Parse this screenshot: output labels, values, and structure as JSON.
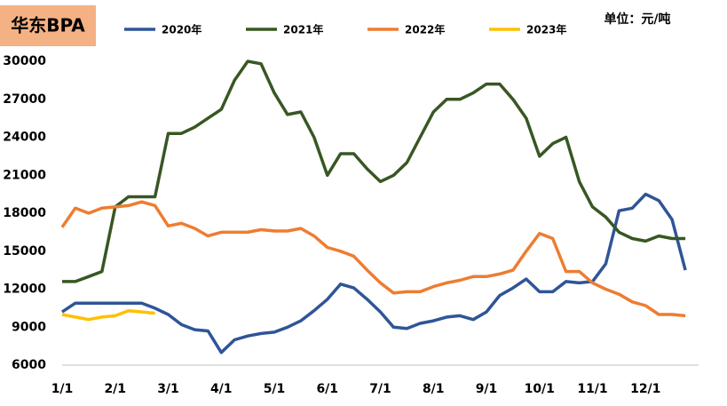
{
  "chart_data": {
    "type": "line",
    "title": "华东BPA",
    "unit_label": "单位：元/吨",
    "categories": [
      "1/1",
      null,
      null,
      null,
      "2/1",
      null,
      null,
      null,
      "3/1",
      null,
      null,
      null,
      "4/1",
      null,
      null,
      null,
      "5/1",
      null,
      null,
      null,
      "6/1",
      null,
      null,
      null,
      "7/1",
      null,
      null,
      null,
      "8/1",
      null,
      null,
      null,
      "9/1",
      null,
      null,
      null,
      "10/1",
      null,
      null,
      null,
      "11/1",
      null,
      null,
      null,
      "12/1",
      null,
      null,
      null
    ],
    "series": [
      {
        "name": "2020年",
        "color": "#2f5597",
        "values": [
          10200,
          10900,
          10900,
          10900,
          10900,
          10900,
          10900,
          10500,
          10000,
          9200,
          8800,
          8700,
          7000,
          8000,
          8300,
          8500,
          8600,
          9000,
          9500,
          10300,
          11200,
          12400,
          12100,
          11200,
          10200,
          9000,
          8900,
          9300,
          9500,
          9800,
          9900,
          9600,
          10200,
          11500,
          12100,
          12800,
          11800,
          11800,
          12600,
          12500,
          12600,
          14000,
          18200,
          18400,
          19500,
          19000,
          17500,
          13500
        ]
      },
      {
        "name": "2021年",
        "color": "#385723",
        "values": [
          12600,
          12600,
          13000,
          13400,
          18500,
          19300,
          19300,
          19300,
          24300,
          24300,
          24800,
          25500,
          26200,
          28500,
          30000,
          29800,
          27500,
          25800,
          26000,
          24000,
          21000,
          22700,
          22700,
          21500,
          20500,
          21000,
          22000,
          24000,
          26000,
          27000,
          27000,
          27500,
          28200,
          28200,
          27000,
          25500,
          22500,
          23500,
          24000,
          20500,
          18500,
          17700,
          16500,
          16000,
          15800,
          16200,
          16000,
          16000
        ]
      },
      {
        "name": "2022年",
        "color": "#ed7d31",
        "values": [
          16900,
          18400,
          18000,
          18400,
          18500,
          18600,
          18900,
          18600,
          17000,
          17200,
          16800,
          16200,
          16500,
          16500,
          16500,
          16700,
          16600,
          16600,
          16800,
          16200,
          15300,
          15000,
          14600,
          13500,
          12500,
          11700,
          11800,
          11800,
          12200,
          12500,
          12700,
          13000,
          13000,
          13200,
          13500,
          15000,
          16400,
          16000,
          13400,
          13400,
          12500,
          12000,
          11600,
          11000,
          10700,
          10000,
          10000,
          9900
        ]
      },
      {
        "name": "2023年",
        "color": "#ffc000",
        "values": [
          10000,
          9800,
          9600,
          9800,
          9900,
          10300,
          10200,
          10100,
          null,
          null,
          null,
          null,
          null,
          null,
          null,
          null,
          null,
          null,
          null,
          null,
          null,
          null,
          null,
          null,
          null,
          null,
          null,
          null,
          null,
          null,
          null,
          null,
          null,
          null,
          null,
          null,
          null,
          null,
          null,
          null,
          null,
          null,
          null,
          null,
          null,
          null,
          null,
          null
        ]
      }
    ],
    "ylim": [
      6000,
      30000
    ],
    "yticks": [
      6000,
      9000,
      12000,
      15000,
      18000,
      21000,
      24000,
      27000,
      30000
    ],
    "grid": false
  }
}
